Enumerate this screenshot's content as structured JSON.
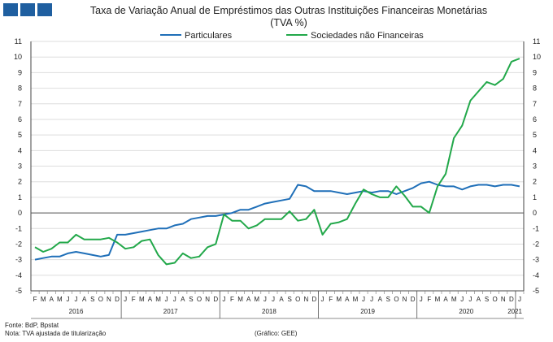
{
  "title_line1": "Taxa de Variação Anual de Empréstimos das Outras Instituições Financeiras Monetárias",
  "title_line2": "(TVA %)",
  "footer": {
    "source": "Fonte: BdP, Bpstat",
    "note": "Nota: TVA ajustada de titularização",
    "credit": "(Gráfico: GEE)"
  },
  "colors": {
    "brand": "#1f5fa0"
  },
  "chart_data": {
    "type": "line",
    "ylim": [
      -5,
      11
    ],
    "yticks": [
      -5,
      -4,
      -3,
      -2,
      -1,
      0,
      1,
      2,
      3,
      4,
      5,
      6,
      7,
      8,
      9,
      10,
      11
    ],
    "grid": true,
    "legend": "top-center",
    "month_labels": [
      "F",
      "M",
      "A",
      "M",
      "J",
      "J",
      "A",
      "S",
      "O",
      "N",
      "D",
      "J",
      "F",
      "M",
      "A",
      "M",
      "J",
      "J",
      "A",
      "S",
      "O",
      "N",
      "D",
      "J",
      "F",
      "M",
      "A",
      "M",
      "J",
      "J",
      "A",
      "S",
      "O",
      "N",
      "D",
      "J",
      "F",
      "M",
      "A",
      "M",
      "J",
      "J",
      "A",
      "S",
      "O",
      "N",
      "D",
      "J",
      "F",
      "M",
      "A",
      "M",
      "J",
      "J",
      "A",
      "S",
      "O",
      "N",
      "D",
      "J"
    ],
    "years": [
      {
        "label": "2016",
        "start": 0,
        "end": 10
      },
      {
        "label": "2017",
        "start": 11,
        "end": 22
      },
      {
        "label": "2018",
        "start": 23,
        "end": 34
      },
      {
        "label": "2019",
        "start": 35,
        "end": 46
      },
      {
        "label": "2020",
        "start": 47,
        "end": 58
      },
      {
        "label": "2021",
        "start": 59,
        "end": 59
      }
    ],
    "series": [
      {
        "name": "Particulares",
        "color": "#1f6fb8",
        "values": [
          -3.0,
          -2.9,
          -2.8,
          -2.8,
          -2.6,
          -2.5,
          -2.6,
          -2.7,
          -2.8,
          -2.7,
          -1.4,
          -1.4,
          -1.3,
          -1.2,
          -1.1,
          -1.0,
          -1.0,
          -0.8,
          -0.7,
          -0.4,
          -0.3,
          -0.2,
          -0.2,
          -0.1,
          0.0,
          0.2,
          0.2,
          0.4,
          0.6,
          0.7,
          0.8,
          0.9,
          1.8,
          1.7,
          1.4,
          1.4,
          1.4,
          1.3,
          1.2,
          1.3,
          1.4,
          1.3,
          1.4,
          1.4,
          1.2,
          1.4,
          1.6,
          1.9,
          2.0,
          1.8,
          1.7,
          1.7,
          1.5,
          1.7,
          1.8,
          1.8,
          1.7,
          1.8,
          1.8,
          1.7
        ]
      },
      {
        "name": "Sociedades não Financeiras",
        "color": "#22a84a",
        "values": [
          -2.2,
          -2.5,
          -2.3,
          -1.9,
          -1.9,
          -1.4,
          -1.7,
          -1.7,
          -1.7,
          -1.6,
          -1.9,
          -2.3,
          -2.2,
          -1.8,
          -1.7,
          -2.7,
          -3.3,
          -3.2,
          -2.6,
          -2.9,
          -2.8,
          -2.2,
          -2.0,
          -0.1,
          -0.5,
          -0.5,
          -1.0,
          -0.8,
          -0.4,
          -0.4,
          -0.4,
          0.1,
          -0.5,
          -0.4,
          0.2,
          -1.4,
          -0.7,
          -0.6,
          -0.4,
          0.6,
          1.5,
          1.2,
          1.0,
          1.0,
          1.7,
          1.1,
          0.4,
          0.4,
          0.0,
          1.7,
          2.5,
          4.8,
          5.6,
          7.2,
          7.8,
          8.4,
          8.2,
          8.6,
          9.7,
          9.9
        ]
      }
    ]
  }
}
